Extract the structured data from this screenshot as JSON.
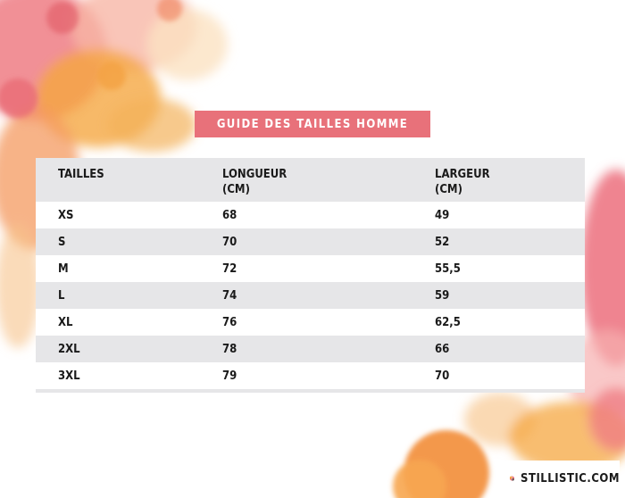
{
  "title": "GUIDE DES TAILLES HOMME",
  "table": {
    "headers": [
      {
        "line1": "TAILLES",
        "line2": ""
      },
      {
        "line1": "LONGUEUR",
        "line2": "(CM)"
      },
      {
        "line1": "LARGEUR",
        "line2": "(CM)"
      }
    ],
    "rows": [
      {
        "size": "XS",
        "length": "68",
        "width": "49"
      },
      {
        "size": "S",
        "length": "70",
        "width": "52"
      },
      {
        "size": "M",
        "length": "72",
        "width": "55,5"
      },
      {
        "size": "L",
        "length": "74",
        "width": "59"
      },
      {
        "size": "XL",
        "length": "76",
        "width": "62,5"
      },
      {
        "size": "2XL",
        "length": "78",
        "width": "66"
      },
      {
        "size": "3XL",
        "length": "79",
        "width": "70"
      }
    ]
  },
  "logo": {
    "text": "STILLISTIC.COM"
  },
  "colors": {
    "banner": "#e8717a",
    "row_alt": "#e6e6e8",
    "watercolor_pink": "#ec6f7c",
    "watercolor_orange": "#f5a742"
  }
}
